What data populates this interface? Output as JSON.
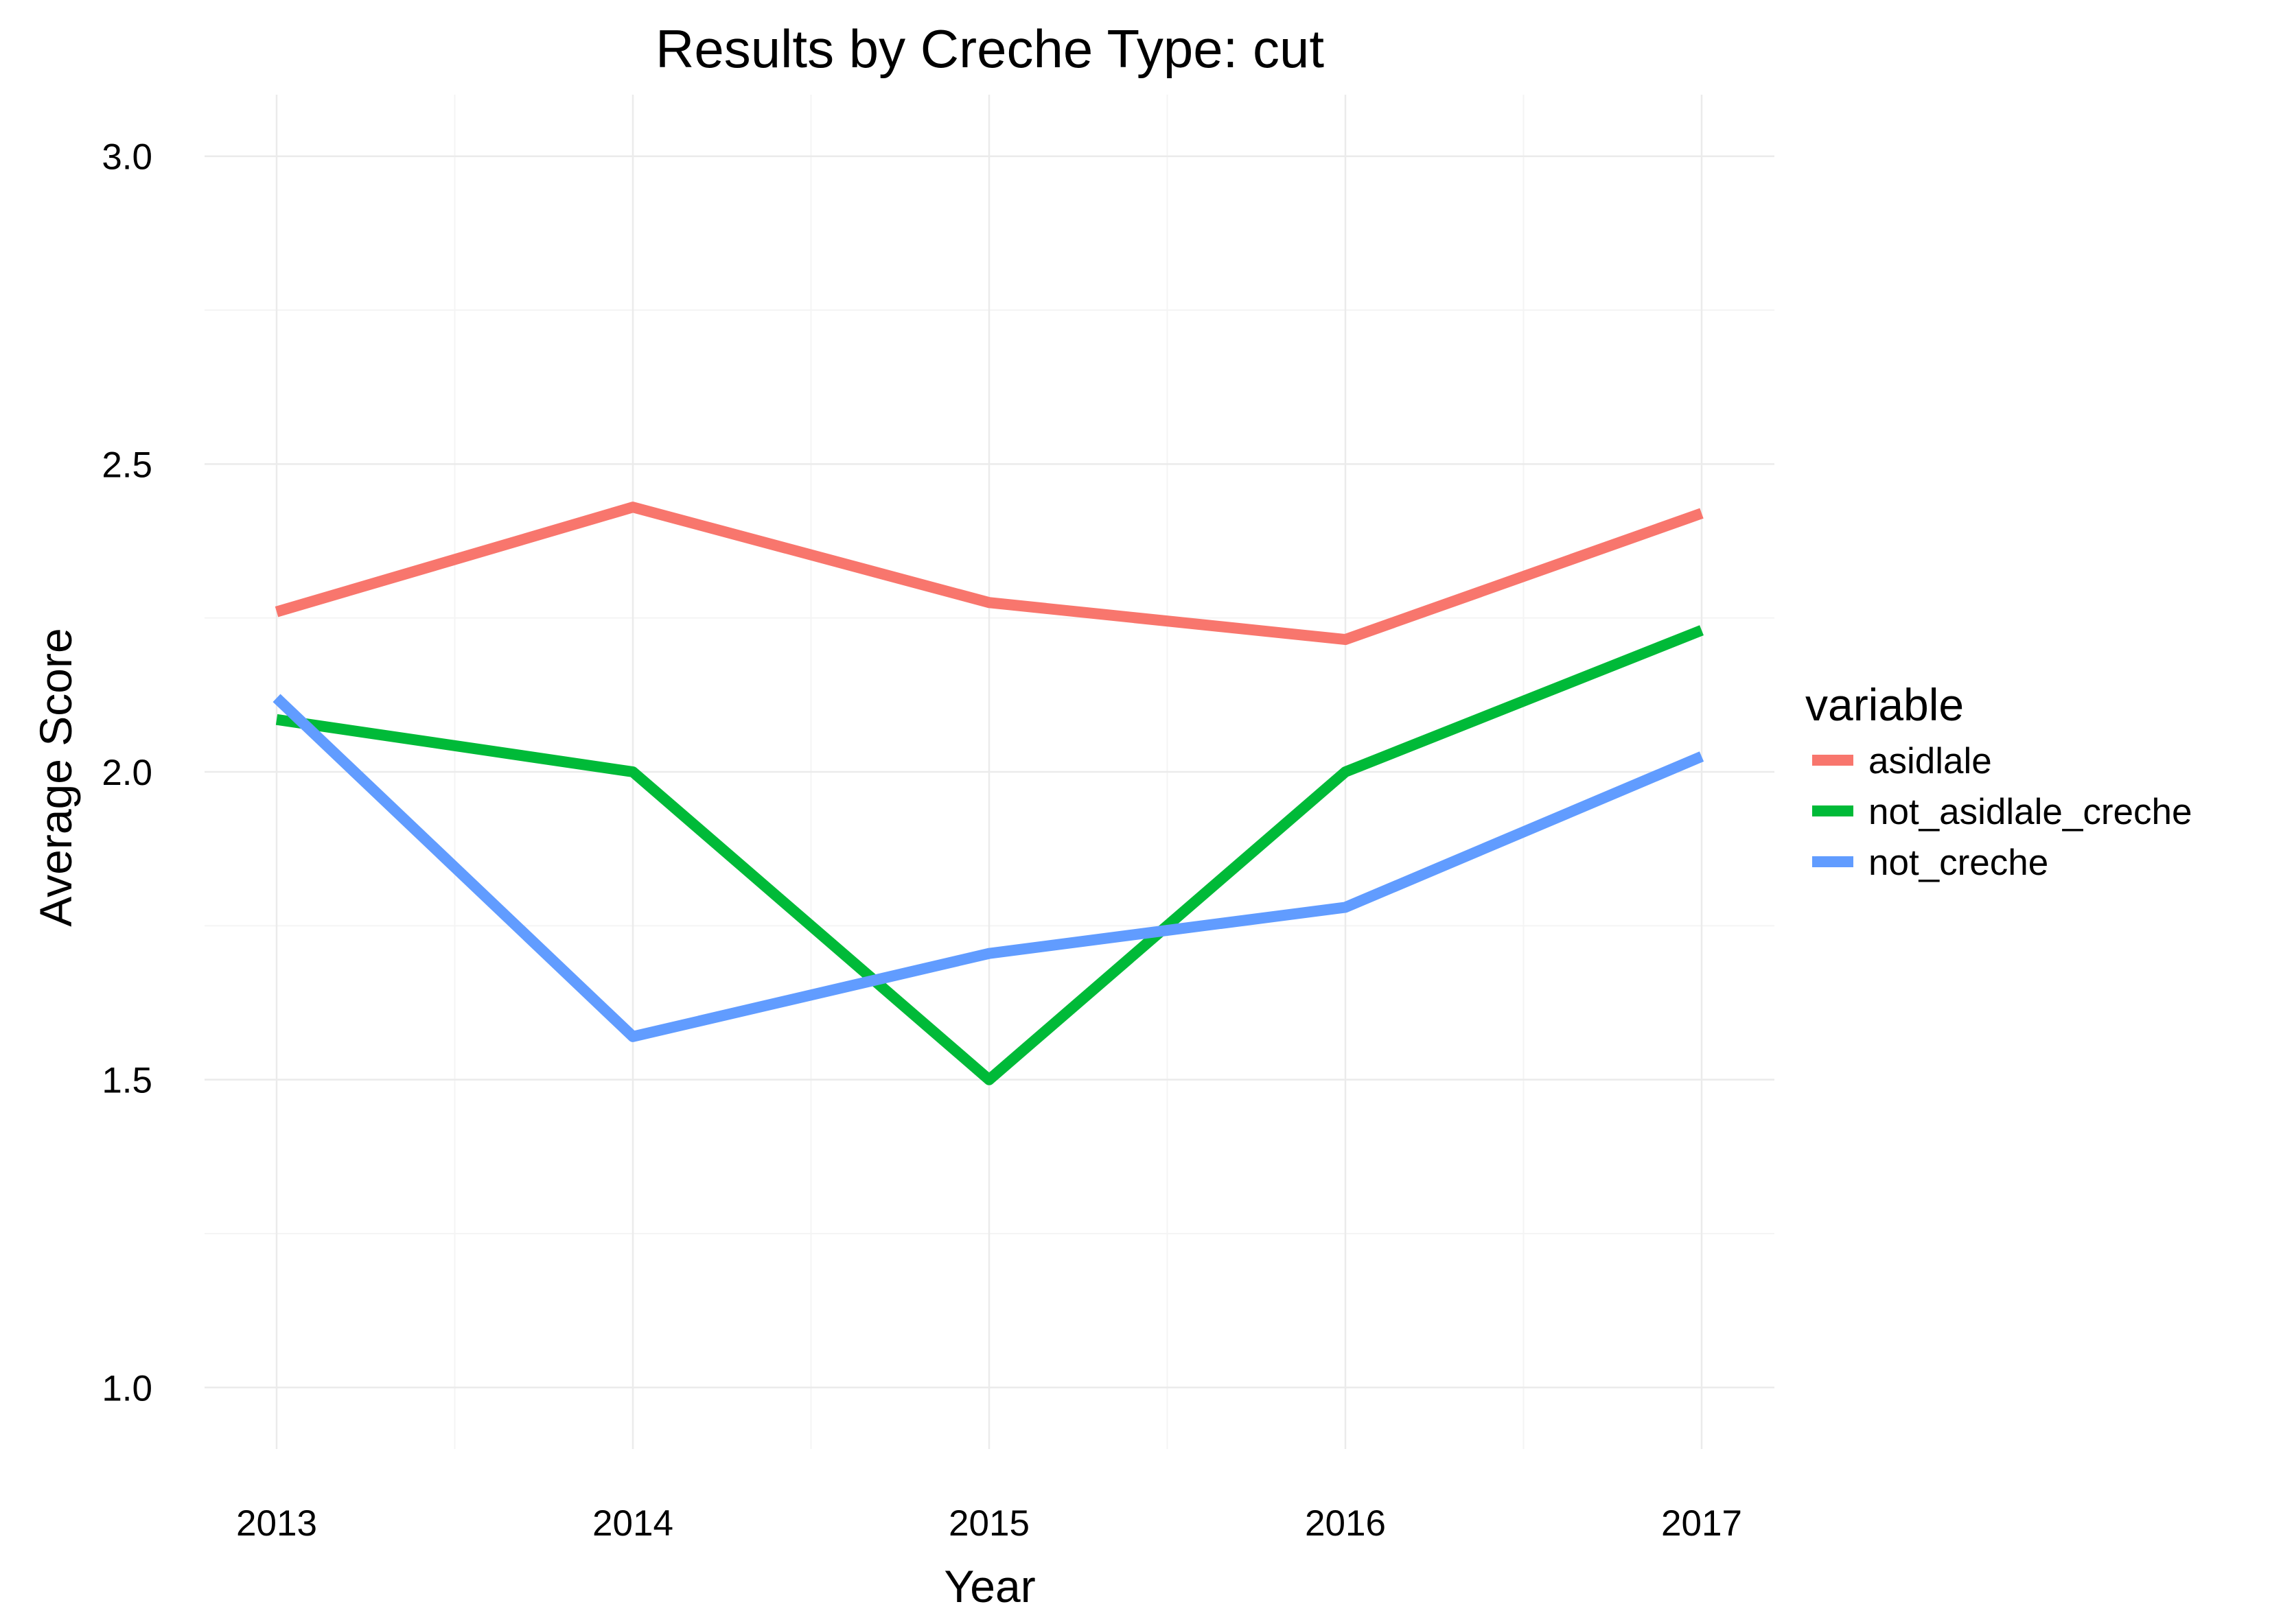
{
  "chart_data": {
    "type": "line",
    "title": "Results by Creche Type: cut",
    "xlabel": "Year",
    "ylabel": "Average Score",
    "x": [
      "2013",
      "2014",
      "2015",
      "2016",
      "2017"
    ],
    "ylim": [
      0.9,
      3.1
    ],
    "yticks": [
      "1.0",
      "1.5",
      "2.0",
      "2.5",
      "3.0"
    ],
    "grid": true,
    "legend": {
      "title": "variable",
      "placement": "right"
    },
    "series": [
      {
        "name": "asidlale",
        "color": "#F8766D",
        "values": [
          2.26,
          2.43,
          2.275,
          2.215,
          2.42
        ]
      },
      {
        "name": "not_asidlale_creche",
        "color": "#00BA38",
        "values": [
          2.085,
          2.0,
          1.5,
          2.0,
          2.23
        ]
      },
      {
        "name": "not_creche",
        "color": "#619CFF",
        "values": [
          2.12,
          1.57,
          1.705,
          1.78,
          2.025
        ]
      }
    ]
  }
}
